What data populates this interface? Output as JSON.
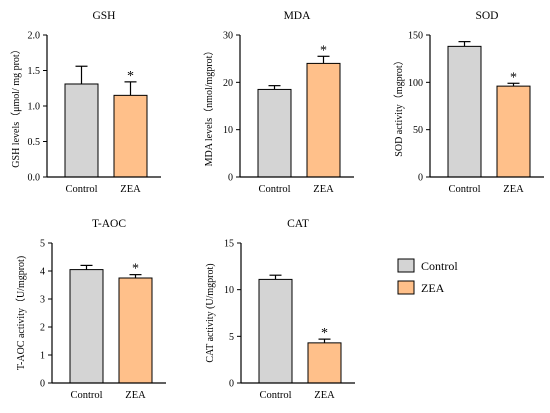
{
  "colors": {
    "control": "#d4d4d4",
    "zea": "#ffc08a",
    "axis": "#000000"
  },
  "legend": {
    "placement": "right",
    "items": [
      "Control",
      "ZEA"
    ]
  },
  "chart_data": [
    {
      "type": "bar",
      "title": "GSH",
      "ylabel": "GSH levels（μmol/ mg prot）",
      "categories": [
        "Control",
        "ZEA"
      ],
      "values": [
        1.31,
        1.15
      ],
      "errors": [
        0.25,
        0.19
      ],
      "significance": [
        "",
        "*"
      ],
      "ylim": [
        0,
        2.0
      ],
      "yticks": [
        0.0,
        0.5,
        1.0,
        1.5,
        2.0
      ],
      "ytick_labels": [
        "0.0",
        "0.5",
        "1.0",
        "1.5",
        "2.0"
      ]
    },
    {
      "type": "bar",
      "title": "MDA",
      "ylabel": "MDA levels（nmol/mgprot）",
      "categories": [
        "Control",
        "ZEA"
      ],
      "values": [
        18.5,
        24.0
      ],
      "errors": [
        0.8,
        1.5
      ],
      "significance": [
        "",
        "*"
      ],
      "ylim": [
        0,
        30
      ],
      "yticks": [
        0,
        10,
        20,
        30
      ],
      "ytick_labels": [
        "0",
        "10",
        "20",
        "30"
      ]
    },
    {
      "type": "bar",
      "title": "SOD",
      "ylabel": "SOD activity（mgprot）",
      "categories": [
        "Control",
        "ZEA"
      ],
      "values": [
        138,
        96
      ],
      "errors": [
        5,
        3
      ],
      "significance": [
        "",
        "*"
      ],
      "ylim": [
        0,
        150
      ],
      "yticks": [
        0,
        50,
        100,
        150
      ],
      "ytick_labels": [
        "0",
        "50",
        "100",
        "150"
      ]
    },
    {
      "type": "bar",
      "title": "T-AOC",
      "ylabel": "T-AOC activity（U/mgprot)",
      "categories": [
        "Control",
        "ZEA"
      ],
      "values": [
        4.05,
        3.75
      ],
      "errors": [
        0.15,
        0.12
      ],
      "significance": [
        "",
        "*"
      ],
      "ylim": [
        0,
        5
      ],
      "yticks": [
        0,
        1,
        2,
        3,
        4,
        5
      ],
      "ytick_labels": [
        "0",
        "1",
        "2",
        "3",
        "4",
        "5"
      ]
    },
    {
      "type": "bar",
      "title": "CAT",
      "ylabel": "CAT activity (U/mgprot)",
      "categories": [
        "Control",
        "ZEA"
      ],
      "values": [
        11.1,
        4.3
      ],
      "errors": [
        0.45,
        0.4
      ],
      "significance": [
        "",
        "*"
      ],
      "ylim": [
        0,
        15
      ],
      "yticks": [
        0,
        5,
        10,
        15
      ],
      "ytick_labels": [
        "0",
        "5",
        "10",
        "15"
      ]
    }
  ]
}
